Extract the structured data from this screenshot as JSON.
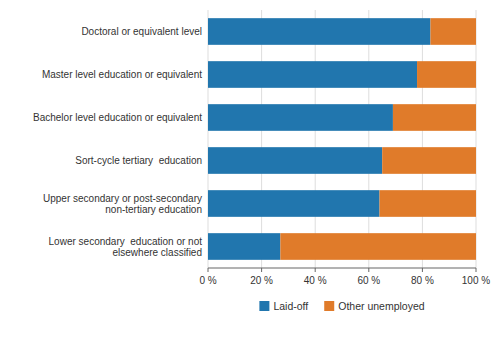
{
  "chart_data": {
    "type": "bar",
    "orientation": "horizontal",
    "stacked": true,
    "categories": [
      "Doctoral or equivalent level",
      "Master level education or equivalent",
      "Bachelor level education or equivalent",
      "Sort-cycle tertiary  education",
      "Upper secondary or post-secondary\nnon-tertiary education",
      "Lower secondary  education or not\nelsewhere classified"
    ],
    "series": [
      {
        "name": "Laid-off",
        "color": "#2176ae",
        "values": [
          83,
          78,
          69,
          65,
          64,
          27
        ]
      },
      {
        "name": "Other unemployed",
        "color": "#e07b2a",
        "values": [
          17,
          22,
          31,
          35,
          36,
          73
        ]
      }
    ],
    "xlim": [
      0,
      100
    ],
    "xticks": [
      {
        "value": 0,
        "label": "0 %"
      },
      {
        "value": 20,
        "label": "20 %"
      },
      {
        "value": 40,
        "label": "40 %"
      },
      {
        "value": 60,
        "label": "60 %"
      },
      {
        "value": 80,
        "label": "80 %"
      },
      {
        "value": 100,
        "label": "100 %"
      }
    ],
    "grid": true,
    "legend": "bottom"
  }
}
